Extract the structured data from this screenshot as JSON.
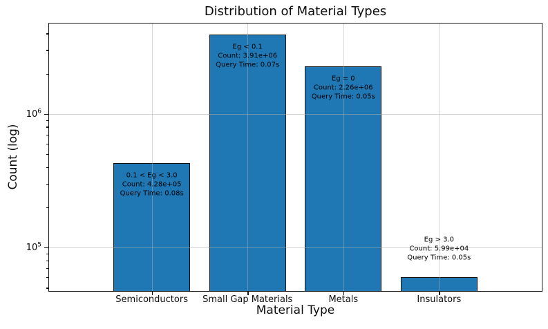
{
  "chart_data": {
    "type": "bar",
    "title": "Distribution of Material Types",
    "xlabel": "Material Type",
    "ylabel": "Count (log)",
    "yscale": "log",
    "ylim": [
      46700,
      4800000
    ],
    "y_major_ticks": [
      100000,
      1000000
    ],
    "grid": true,
    "legend_position": "none",
    "categories": [
      "Semiconductors",
      "Small Gap Materials",
      "Metals",
      "Insulators"
    ],
    "values": [
      428000,
      3910000,
      2260000,
      59900
    ],
    "bar_color": "#1f77b4",
    "bar_edge_color": "#111111",
    "annotations": [
      {
        "lines": [
          "0.1 < Eg < 3.0",
          "Count: 4.28e+05",
          "Query Time: 0.08s"
        ],
        "placement": "inside"
      },
      {
        "lines": [
          "Eg < 0.1",
          "Count: 3.91e+06",
          "Query Time: 0.07s"
        ],
        "placement": "inside"
      },
      {
        "lines": [
          "Eg = 0",
          "Count: 2.26e+06",
          "Query Time: 0.05s"
        ],
        "placement": "inside"
      },
      {
        "lines": [
          "Eg > 3.0",
          "Count: 5.99e+04",
          "Query Time: 0.05s"
        ],
        "placement": "above"
      }
    ]
  }
}
